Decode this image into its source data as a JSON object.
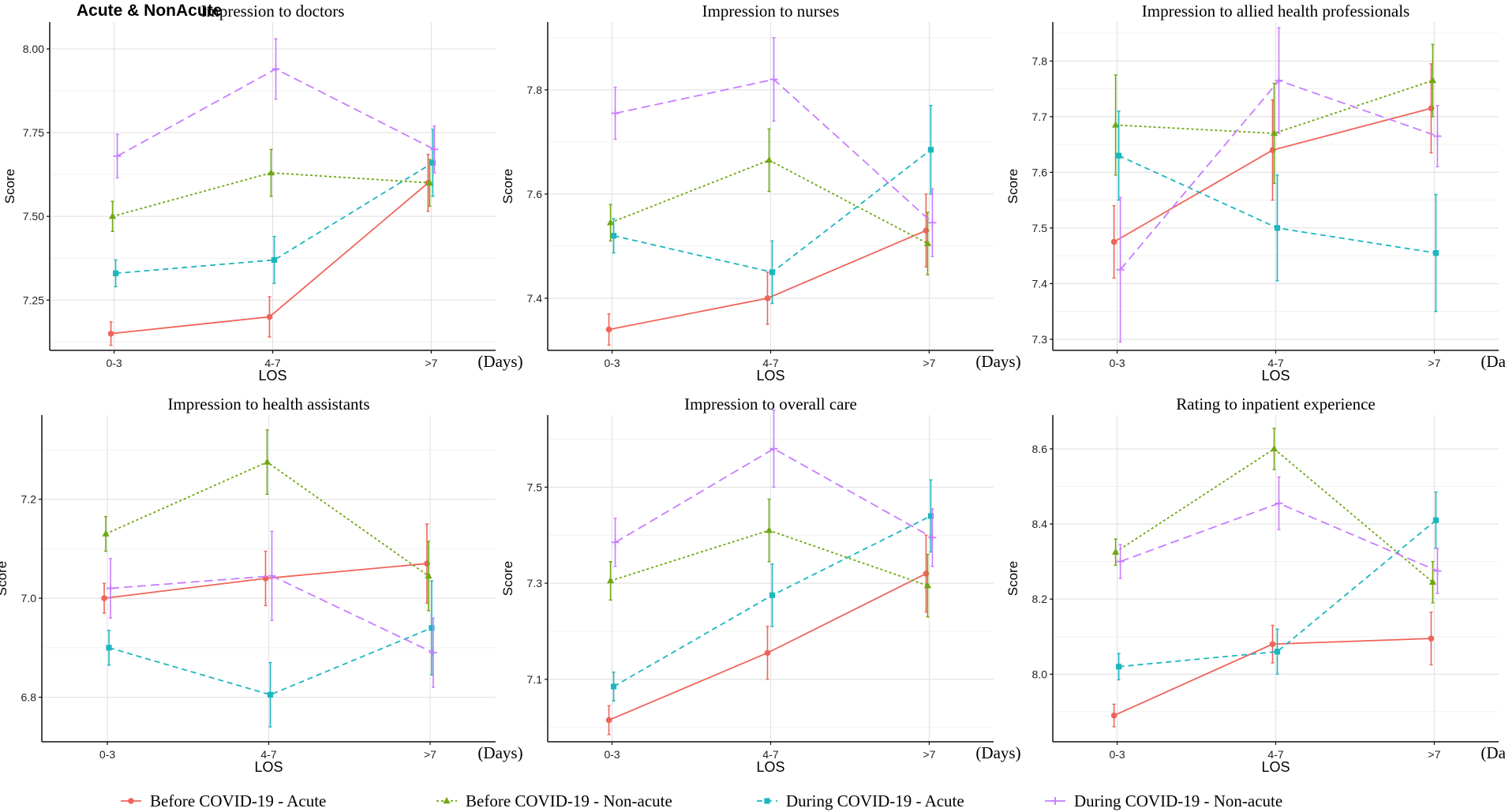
{
  "figure_label": "Acute & NonAcute",
  "legend": [
    {
      "label": "Before COVID-19 - Acute",
      "color": "#f0645a",
      "marker": "circle",
      "dash": "solid"
    },
    {
      "label": "Before COVID-19 - Non-acute",
      "color": "#6ea812",
      "marker": "triangle",
      "dash": "dotted"
    },
    {
      "label": "During COVID-19 - Acute",
      "color": "#1bb7bf",
      "marker": "square",
      "dash": "dashed"
    },
    {
      "label": "During COVID-19 - Non-acute",
      "color": "#c77cff",
      "marker": "plus",
      "dash": "longdash"
    }
  ],
  "chart_data": [
    {
      "type": "line",
      "title": "Impression to doctors",
      "categories": [
        "0-3",
        "4-7",
        ">7"
      ],
      "xlabel": "LOS",
      "unit_label": "(Days)",
      "ylabel": "Score",
      "ylim": [
        7.1,
        8.08
      ],
      "yticks": [
        7.25,
        7.5,
        7.75,
        8.0
      ],
      "ytick_labels": [
        "7.25",
        "7.50",
        "7.75",
        "8.00"
      ],
      "series": [
        {
          "name": "Before COVID-19 - Acute",
          "values": [
            7.15,
            7.2,
            7.6
          ],
          "errors": [
            0.035,
            0.06,
            0.085
          ]
        },
        {
          "name": "Before COVID-19 - Non-acute",
          "values": [
            7.5,
            7.63,
            7.6
          ],
          "errors": [
            0.045,
            0.07,
            0.07
          ]
        },
        {
          "name": "During COVID-19 - Acute",
          "values": [
            7.33,
            7.37,
            7.66
          ],
          "errors": [
            0.04,
            0.07,
            0.1
          ]
        },
        {
          "name": "During COVID-19 - Non-acute",
          "values": [
            7.68,
            7.94,
            7.7
          ],
          "errors": [
            0.065,
            0.09,
            0.07
          ]
        }
      ]
    },
    {
      "type": "line",
      "title": "Impression to nurses",
      "categories": [
        "0-3",
        "4-7",
        ">7"
      ],
      "xlabel": "LOS",
      "unit_label": "(Days)",
      "ylabel": "Score",
      "ylim": [
        7.3,
        7.93
      ],
      "yticks": [
        7.4,
        7.6,
        7.8
      ],
      "ytick_labels": [
        "7.4",
        "7.6",
        "7.8"
      ],
      "series": [
        {
          "name": "Before COVID-19 - Acute",
          "values": [
            7.34,
            7.4,
            7.53
          ],
          "errors": [
            0.03,
            0.05,
            0.07
          ]
        },
        {
          "name": "Before COVID-19 - Non-acute",
          "values": [
            7.545,
            7.665,
            7.505
          ],
          "errors": [
            0.035,
            0.06,
            0.06
          ]
        },
        {
          "name": "During COVID-19 - Acute",
          "values": [
            7.52,
            7.45,
            7.685
          ],
          "errors": [
            0.033,
            0.06,
            0.085
          ]
        },
        {
          "name": "During COVID-19 - Non-acute",
          "values": [
            7.755,
            7.82,
            7.545
          ],
          "errors": [
            0.05,
            0.08,
            0.065
          ]
        }
      ]
    },
    {
      "type": "line",
      "title": "Impression to allied health professionals",
      "categories": [
        "0-3",
        "4-7",
        ">7"
      ],
      "xlabel": "LOS",
      "unit_label": "(Days)",
      "ylabel": "Score",
      "ylim": [
        7.28,
        7.87
      ],
      "yticks": [
        7.3,
        7.4,
        7.5,
        7.6,
        7.7,
        7.8
      ],
      "ytick_labels": [
        "7.3",
        "7.4",
        "7.5",
        "7.6",
        "7.7",
        "7.8"
      ],
      "series": [
        {
          "name": "Before COVID-19 - Acute",
          "values": [
            7.475,
            7.64,
            7.715
          ],
          "errors": [
            0.065,
            0.09,
            0.08
          ]
        },
        {
          "name": "Before COVID-19 - Non-acute",
          "values": [
            7.685,
            7.67,
            7.765
          ],
          "errors": [
            0.09,
            0.09,
            0.065
          ]
        },
        {
          "name": "During COVID-19 - Acute",
          "values": [
            7.63,
            7.5,
            7.455
          ],
          "errors": [
            0.08,
            0.095,
            0.105
          ]
        },
        {
          "name": "During COVID-19 - Non-acute",
          "values": [
            7.425,
            7.765,
            7.665
          ],
          "errors": [
            0.13,
            0.095,
            0.055
          ]
        }
      ]
    },
    {
      "type": "line",
      "title": "Impression to health assistants",
      "categories": [
        "0-3",
        "4-7",
        ">7"
      ],
      "xlabel": "LOS",
      "unit_label": "(Days)",
      "ylabel": "Score",
      "ylim": [
        6.71,
        7.37
      ],
      "yticks": [
        6.8,
        7.0,
        7.2
      ],
      "ytick_labels": [
        "6.8",
        "7.0",
        "7.2"
      ],
      "series": [
        {
          "name": "Before COVID-19 - Acute",
          "values": [
            7.0,
            7.04,
            7.07
          ],
          "errors": [
            0.03,
            0.055,
            0.08
          ]
        },
        {
          "name": "Before COVID-19 - Non-acute",
          "values": [
            7.13,
            7.275,
            7.045
          ],
          "errors": [
            0.035,
            0.065,
            0.07
          ]
        },
        {
          "name": "During COVID-19 - Acute",
          "values": [
            6.9,
            6.805,
            6.94
          ],
          "errors": [
            0.035,
            0.065,
            0.095
          ]
        },
        {
          "name": "During COVID-19 - Non-acute",
          "values": [
            7.02,
            7.045,
            6.89
          ],
          "errors": [
            0.06,
            0.09,
            0.07
          ]
        }
      ]
    },
    {
      "type": "line",
      "title": "Impression to overall care",
      "categories": [
        "0-3",
        "4-7",
        ">7"
      ],
      "xlabel": "LOS",
      "unit_label": "(Days)",
      "ylabel": "Score",
      "ylim": [
        6.97,
        7.65
      ],
      "yticks": [
        7.1,
        7.3,
        7.5
      ],
      "ytick_labels": [
        "7.1",
        "7.3",
        "7.5"
      ],
      "series": [
        {
          "name": "Before COVID-19 - Acute",
          "values": [
            7.015,
            7.155,
            7.32
          ],
          "errors": [
            0.03,
            0.055,
            0.08
          ]
        },
        {
          "name": "Before COVID-19 - Non-acute",
          "values": [
            7.305,
            7.41,
            7.295
          ],
          "errors": [
            0.04,
            0.065,
            0.065
          ]
        },
        {
          "name": "During COVID-19 - Acute",
          "values": [
            7.085,
            7.275,
            7.44
          ],
          "errors": [
            0.03,
            0.065,
            0.075
          ]
        },
        {
          "name": "During COVID-19 - Non-acute",
          "values": [
            7.385,
            7.58,
            7.395
          ],
          "errors": [
            0.05,
            0.08,
            0.06
          ]
        }
      ]
    },
    {
      "type": "line",
      "title": "Rating to inpatient experience",
      "categories": [
        "0-3",
        "4-7",
        ">7"
      ],
      "xlabel": "LOS",
      "unit_label": "(Days)",
      "ylabel": "Score",
      "ylim": [
        7.82,
        8.69
      ],
      "yticks": [
        8.0,
        8.2,
        8.4,
        8.6
      ],
      "ytick_labels": [
        "8.0",
        "8.2",
        "8.4",
        "8.6"
      ],
      "series": [
        {
          "name": "Before COVID-19 - Acute",
          "values": [
            7.89,
            8.08,
            8.095
          ],
          "errors": [
            0.03,
            0.05,
            0.07
          ]
        },
        {
          "name": "Before COVID-19 - Non-acute",
          "values": [
            8.325,
            8.6,
            8.245
          ],
          "errors": [
            0.035,
            0.055,
            0.055
          ]
        },
        {
          "name": "During COVID-19 - Acute",
          "values": [
            8.02,
            8.06,
            8.41
          ],
          "errors": [
            0.035,
            0.06,
            0.075
          ]
        },
        {
          "name": "During COVID-19 - Non-acute",
          "values": [
            8.3,
            8.455,
            8.275
          ],
          "errors": [
            0.045,
            0.07,
            0.06
          ]
        }
      ]
    }
  ]
}
